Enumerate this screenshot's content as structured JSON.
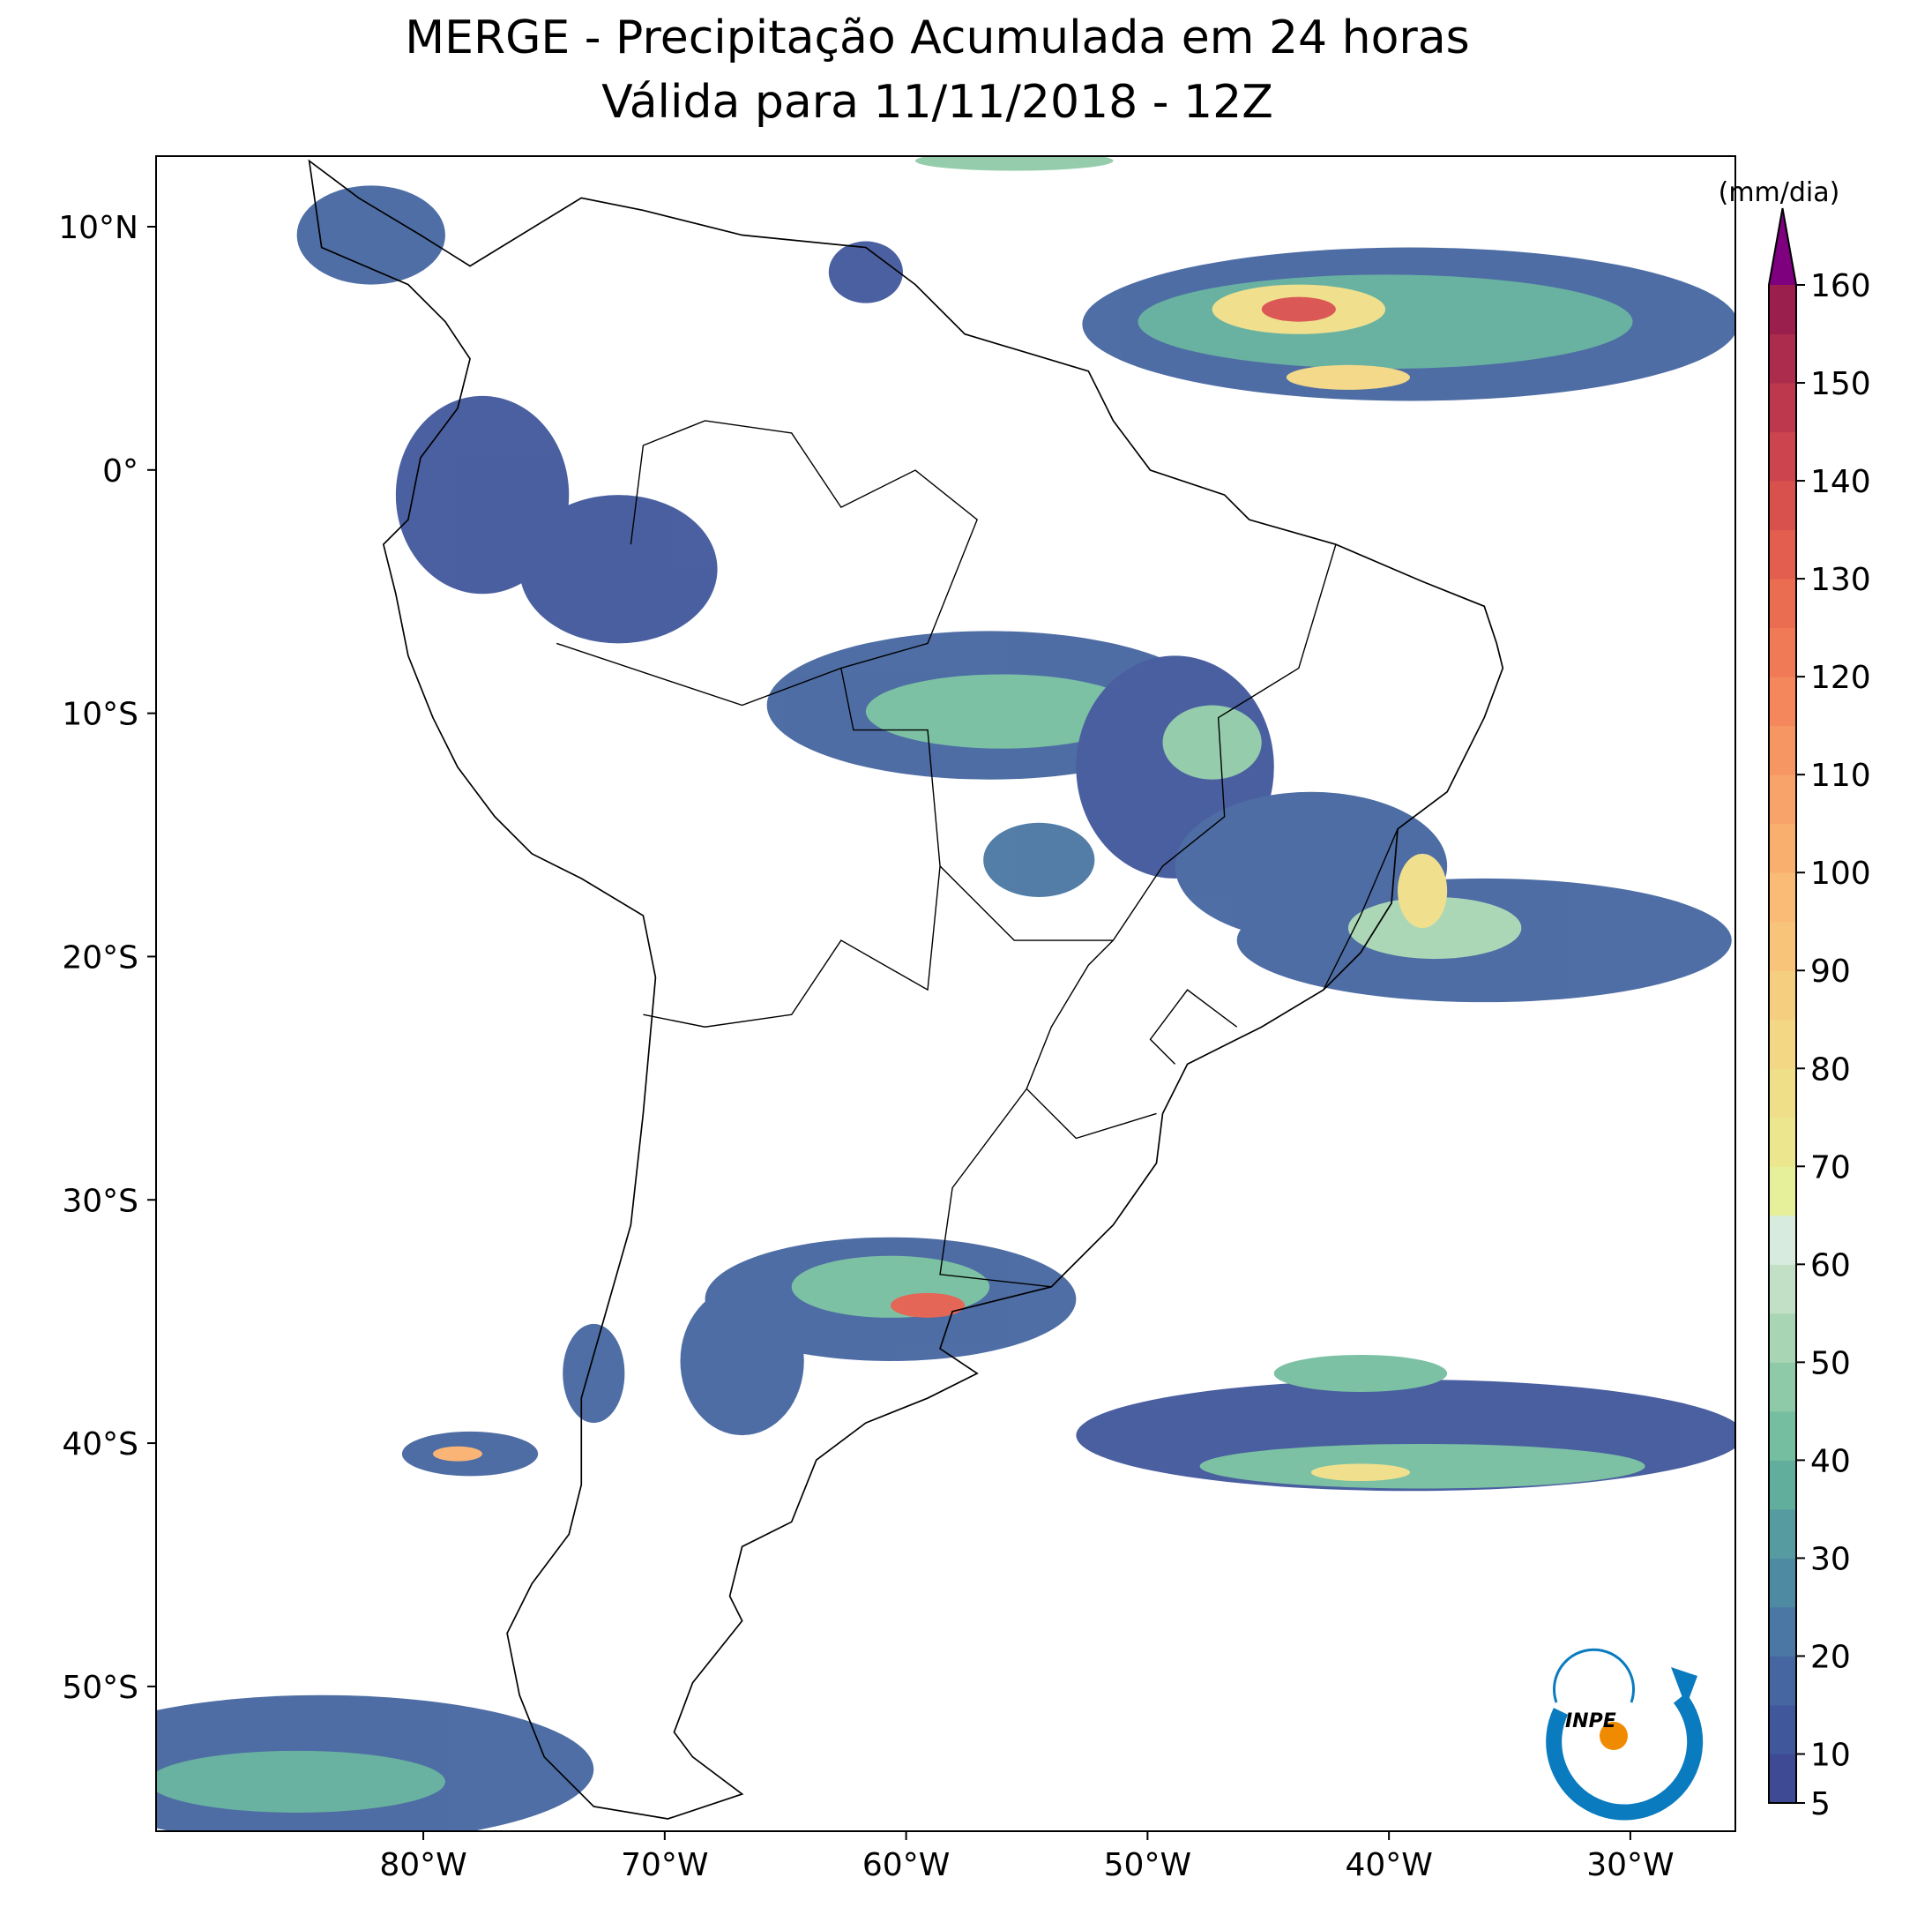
{
  "map": {
    "title": [
      "MERGE - Precipitação Acumulada em 24 horas",
      "Válida para 11/11/2018 - 12Z"
    ],
    "lonlim": [
      -91.07,
      -25.65
    ],
    "latlim": [
      -55.95,
      12.9
    ],
    "lon_ticks": [
      {
        "value": -80,
        "label": "80°W"
      },
      {
        "value": -70,
        "label": "70°W"
      },
      {
        "value": -60,
        "label": "60°W"
      },
      {
        "value": -50,
        "label": "50°W"
      },
      {
        "value": -40,
        "label": "40°W"
      },
      {
        "value": -30,
        "label": "30°W"
      }
    ],
    "lat_ticks": [
      {
        "value": 10,
        "label": "10°N"
      },
      {
        "value": 0,
        "label": "0°"
      },
      {
        "value": -10,
        "label": "10°S"
      },
      {
        "value": -20,
        "label": "20°S"
      },
      {
        "value": -30,
        "label": "30°S"
      },
      {
        "value": -40,
        "label": "40°S"
      },
      {
        "value": -50,
        "label": "50°S"
      }
    ],
    "colorbar": {
      "label": "(mm/dia)",
      "lim": [
        5,
        160
      ],
      "ticks": [
        5,
        10,
        20,
        30,
        40,
        50,
        60,
        70,
        80,
        90,
        100,
        110,
        120,
        130,
        140,
        150,
        160
      ],
      "colors": [
        "#3e4a93",
        "#41579b",
        "#4566a0",
        "#4a77a3",
        "#4f8aa3",
        "#559ba0",
        "#62ae9d",
        "#76bea0",
        "#8fcaa8",
        "#a8d5b4",
        "#c1e0c6",
        "#d8ebdf",
        "#e6ef9a",
        "#ece78e",
        "#f0df89",
        "#f4d784",
        "#f6ce7f",
        "#f8c47a",
        "#f9bb75",
        "#f9b06f",
        "#f8a369",
        "#f69663",
        "#f4885c",
        "#f07a56",
        "#ea6c51",
        "#e35e4e",
        "#d9514d",
        "#cc444d",
        "#bd384d",
        "#ac2c4d",
        "#9b1f4d"
      ],
      "extend_color": "#7f007f"
    },
    "logo": "INPE"
  }
}
